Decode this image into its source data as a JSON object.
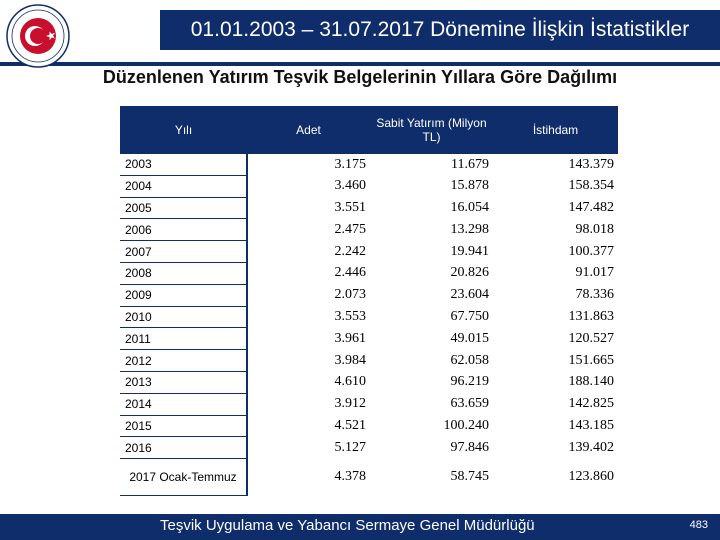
{
  "header": {
    "title": "01.01.2003 – 31.07.2017 Dönemine İlişkin İstatistikler"
  },
  "subtitle": "Düzenlenen Yatırım Teşvik Belgelerinin Yıllara Göre Dağılımı",
  "table": {
    "headers": {
      "year": "Yılı",
      "count": "Adet",
      "investment": "Sabit Yatırım (Milyon TL)",
      "employment": "İstihdam"
    },
    "rows": [
      {
        "year": "2003",
        "count": "3.175",
        "investment": "11.679",
        "employment": "143.379"
      },
      {
        "year": "2004",
        "count": "3.460",
        "investment": "15.878",
        "employment": "158.354"
      },
      {
        "year": "2005",
        "count": "3.551",
        "investment": "16.054",
        "employment": "147.482"
      },
      {
        "year": "2006",
        "count": "2.475",
        "investment": "13.298",
        "employment": "98.018"
      },
      {
        "year": "2007",
        "count": "2.242",
        "investment": "19.941",
        "employment": "100.377"
      },
      {
        "year": "2008",
        "count": "2.446",
        "investment": "20.826",
        "employment": "91.017"
      },
      {
        "year": "2009",
        "count": "2.073",
        "investment": "23.604",
        "employment": "78.336"
      },
      {
        "year": "2010",
        "count": "3.553",
        "investment": "67.750",
        "employment": "131.863"
      },
      {
        "year": "2011",
        "count": "3.961",
        "investment": "49.015",
        "employment": "120.527"
      },
      {
        "year": "2012",
        "count": "3.984",
        "investment": "62.058",
        "employment": "151.665"
      },
      {
        "year": "2013",
        "count": "4.610",
        "investment": "96.219",
        "employment": "188.140"
      },
      {
        "year": "2014",
        "count": "3.912",
        "investment": "63.659",
        "employment": "142.825"
      },
      {
        "year": "2015",
        "count": "4.521",
        "investment": "100.240",
        "employment": "143.185"
      },
      {
        "year": "2016",
        "count": "5.127",
        "investment": "97.846",
        "employment": "139.402"
      },
      {
        "year": "2017 Ocak-Temmuz",
        "count": "4.378",
        "investment": "58.745",
        "employment": "123.860"
      }
    ]
  },
  "footer": {
    "text": "Teşvik Uygulama ve Yabancı Sermaye Genel Müdürlüğü",
    "page": "483"
  },
  "colors": {
    "navy": "#0f2d6b",
    "logo_red": "#c8102e"
  }
}
